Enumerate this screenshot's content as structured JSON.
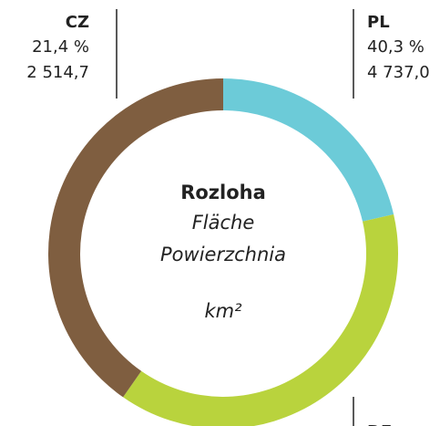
{
  "chart_data": {
    "type": "pie",
    "title": "Rozloha",
    "subtitle": [
      "Fläche",
      "Powierzchnia"
    ],
    "unit": "km²",
    "slices": [
      {
        "name": "CZ",
        "color": "#6ccbd8",
        "value": 21.4,
        "value_label": "21,4 %",
        "area": "2 514,7"
      },
      {
        "name": "DE",
        "color": "#b9d33d",
        "value": 38.3
      },
      {
        "name": "PL",
        "color": "#7f5e40",
        "value": 40.3,
        "value_label": "40,3 %",
        "area": "4 737,0"
      }
    ]
  }
}
